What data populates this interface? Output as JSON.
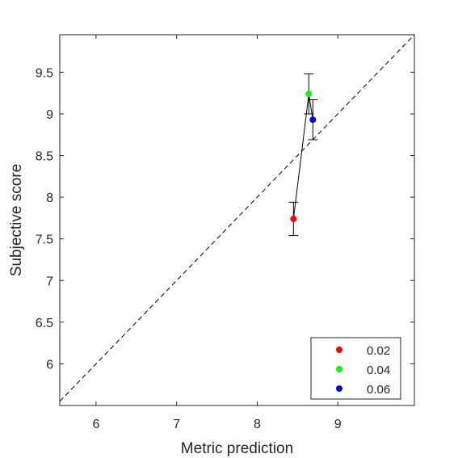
{
  "chart_data": {
    "type": "scatter",
    "title": "",
    "xlabel": "Metric prediction",
    "ylabel": "Subjective score",
    "xlim": [
      5.55,
      9.95
    ],
    "ylim": [
      5.5,
      9.95
    ],
    "xticks": [
      6,
      7,
      8,
      9
    ],
    "xtick_labels": [
      "6",
      "7",
      "8",
      "9"
    ],
    "yticks": [
      6,
      6.5,
      7,
      7.5,
      8,
      8.5,
      9,
      9.5
    ],
    "ytick_labels": [
      "6",
      "6.5",
      "7",
      "7.5",
      "8",
      "8.5",
      "9",
      "9.5"
    ],
    "grid": false,
    "reference_line": {
      "style": "dashed",
      "from": [
        5.55,
        5.55
      ],
      "to": [
        9.95,
        9.95
      ]
    },
    "connect_points": true,
    "legend_position": "bottom-right",
    "series": [
      {
        "name": "0.02",
        "color": "#ff0000",
        "x": 8.45,
        "y": 7.74,
        "err_low": 7.54,
        "err_high": 7.94
      },
      {
        "name": "0.04",
        "color": "#00ff00",
        "x": 8.64,
        "y": 9.24,
        "err_low": 9.0,
        "err_high": 9.48
      },
      {
        "name": "0.06",
        "color": "#0000ff",
        "x": 8.69,
        "y": 8.93,
        "err_low": 8.69,
        "err_high": 9.17
      }
    ]
  }
}
